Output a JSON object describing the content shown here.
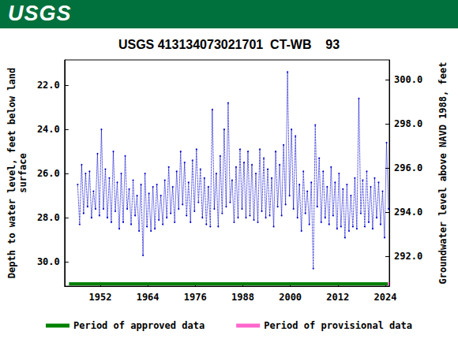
{
  "header": {
    "logo": "USGS"
  },
  "chart_data": {
    "type": "line",
    "title": "USGS 413134073021701  CT-WB    93",
    "y_label": "Depth to water level, feet below land\nsurface",
    "y2_label": "Groundwater level above NAVD 1988, feet",
    "color": "#0000cc",
    "marker": "circle",
    "line_style": "dotted",
    "grid": false,
    "legend": "bottom",
    "xlim": [
      1943,
      2025
    ],
    "xticks": [
      1952,
      1964,
      1976,
      1988,
      2000,
      2012,
      2024
    ],
    "ylim": [
      31.1,
      20.85
    ],
    "yticks": [
      {
        "value": 22,
        "label": "22.0"
      },
      {
        "value": 24,
        "label": "24.0"
      },
      {
        "value": 26,
        "label": "26.0"
      },
      {
        "value": 28,
        "label": "28.0"
      },
      {
        "value": 30,
        "label": "30.0"
      }
    ],
    "y2lim": [
      290.65,
      300.9
    ],
    "y2ticks": [
      {
        "value": 292,
        "label": "292.0"
      },
      {
        "value": 294,
        "label": "294.0"
      },
      {
        "value": 296,
        "label": "296.0"
      },
      {
        "value": 298,
        "label": "298.0"
      },
      {
        "value": 300,
        "label": "300.0"
      }
    ],
    "x": [
      1946.3,
      1946.8,
      1947.3,
      1947.8,
      1948.3,
      1948.8,
      1949.3,
      1949.8,
      1950.3,
      1950.8,
      1951.3,
      1951.8,
      1952.3,
      1952.8,
      1953.3,
      1953.8,
      1954.3,
      1954.8,
      1955.3,
      1955.8,
      1956.3,
      1956.8,
      1957.3,
      1957.8,
      1958.3,
      1958.8,
      1959.3,
      1959.8,
      1960.3,
      1960.8,
      1961.3,
      1961.8,
      1962.3,
      1962.8,
      1963.3,
      1963.8,
      1964.3,
      1964.8,
      1965.3,
      1965.8,
      1966.3,
      1966.8,
      1967.3,
      1967.8,
      1968.3,
      1968.8,
      1969.3,
      1969.8,
      1970.3,
      1970.8,
      1971.3,
      1971.8,
      1972.3,
      1972.8,
      1973.3,
      1973.8,
      1974.3,
      1974.8,
      1975.3,
      1975.8,
      1976.3,
      1976.8,
      1977.3,
      1977.8,
      1978.3,
      1978.8,
      1979.3,
      1979.8,
      1980.3,
      1980.8,
      1981.3,
      1981.8,
      1982.3,
      1982.8,
      1983.3,
      1983.8,
      1984.3,
      1984.8,
      1985.3,
      1985.8,
      1986.3,
      1986.8,
      1987.3,
      1987.8,
      1988.3,
      1988.8,
      1989.3,
      1989.8,
      1990.3,
      1990.8,
      1991.3,
      1991.8,
      1992.3,
      1992.8,
      1993.3,
      1993.8,
      1994.3,
      1994.8,
      1995.3,
      1995.8,
      1996.3,
      1996.8,
      1997.3,
      1997.8,
      1998.3,
      1998.8,
      1999.3,
      1999.8,
      2000.3,
      2000.8,
      2001.3,
      2001.8,
      2002.3,
      2002.8,
      2003.3,
      2003.8,
      2004.3,
      2004.8,
      2005.3,
      2005.8,
      2006.3,
      2006.8,
      2007.3,
      2007.8,
      2008.3,
      2008.8,
      2009.3,
      2009.8,
      2010.3,
      2010.8,
      2011.3,
      2011.8,
      2012.3,
      2012.8,
      2013.3,
      2013.8,
      2014.3,
      2014.8,
      2015.3,
      2015.8,
      2016.3,
      2016.8,
      2017.3,
      2017.8,
      2018.3,
      2018.8,
      2019.3,
      2019.8,
      2020.3,
      2020.8,
      2021.3,
      2021.8,
      2022.3,
      2022.8,
      2023.3,
      2023.8,
      2024.3,
      2024.8
    ],
    "values": [
      26.5,
      28.3,
      25.6,
      27.8,
      26.0,
      27.5,
      25.9,
      28.0,
      26.8,
      27.6,
      25.1,
      27.9,
      24.0,
      27.6,
      25.8,
      28.0,
      26.2,
      28.2,
      25.0,
      27.7,
      26.4,
      28.5,
      26.0,
      28.2,
      25.2,
      27.6,
      26.7,
      28.3,
      26.3,
      27.9,
      27.0,
      28.6,
      26.5,
      29.7,
      26.0,
      28.4,
      26.9,
      28.6,
      26.6,
      28.5,
      26.5,
      28.1,
      27.0,
      28.3,
      26.3,
      28.0,
      25.7,
      27.8,
      26.6,
      28.2,
      25.9,
      27.6,
      25.0,
      27.4,
      25.5,
      27.9,
      26.4,
      28.2,
      25.4,
      27.7,
      24.9,
      27.3,
      25.8,
      28.0,
      26.2,
      28.3,
      26.6,
      28.4,
      23.1,
      27.6,
      26.0,
      28.4,
      25.2,
      27.8,
      24.0,
      27.5,
      22.8,
      27.3,
      26.3,
      28.2,
      25.7,
      28.0,
      24.9,
      27.6,
      25.5,
      28.0,
      25.0,
      27.9,
      25.6,
      28.1,
      26.0,
      28.2,
      24.9,
      27.7,
      25.3,
      28.0,
      25.8,
      27.9,
      26.2,
      28.4,
      25.0,
      27.5,
      25.6,
      27.9,
      24.7,
      27.4,
      21.4,
      27.0,
      24.0,
      27.6,
      24.3,
      28.0,
      26.5,
      28.6,
      25.9,
      27.8,
      26.8,
      28.3,
      26.4,
      30.3,
      23.8,
      27.5,
      25.3,
      28.2,
      25.9,
      28.0,
      26.6,
      28.3,
      25.7,
      27.9,
      26.4,
      28.5,
      26.0,
      28.4,
      26.7,
      28.9,
      26.5,
      28.6,
      27.0,
      28.4,
      26.2,
      28.5,
      22.6,
      27.8,
      26.3,
      28.4,
      25.9,
      28.2,
      26.6,
      28.5,
      26.2,
      28.0,
      26.4,
      28.3,
      26.8,
      28.9,
      24.6,
      27.6
    ],
    "periods": [
      {
        "name": "Period of approved data",
        "color": "#008000",
        "start": 1945.8,
        "end": 2024.6
      },
      {
        "name": "Period of provisional data",
        "color": "#ff66cc",
        "start": 2024.6,
        "end": 2025
      }
    ]
  }
}
